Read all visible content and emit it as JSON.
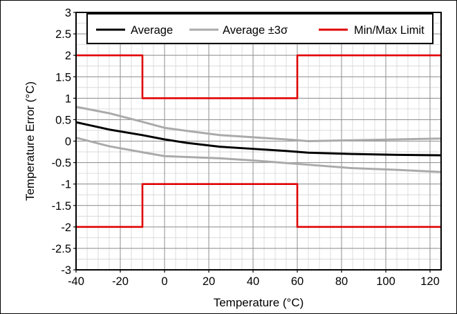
{
  "chart_data": {
    "type": "line",
    "xlabel": "Temperature (°C)",
    "ylabel": "Temperature Error (°C)",
    "xlim": [
      -40,
      125
    ],
    "ylim": [
      -3,
      3
    ],
    "x_ticks": [
      -40,
      -20,
      0,
      20,
      40,
      60,
      80,
      100,
      120
    ],
    "x_tick_labels": [
      "-40",
      "-20",
      "0",
      "20",
      "40",
      "60",
      "80",
      "100",
      "120"
    ],
    "y_ticks": [
      3,
      2.5,
      2,
      1.5,
      1,
      0.5,
      0,
      -0.5,
      -1,
      -1.5,
      -2,
      -2.5,
      -3
    ],
    "y_tick_labels": [
      "3",
      "2.5",
      "2",
      "1.5",
      "1",
      "0.5",
      "0",
      "-0.5",
      "-1",
      "-1.5",
      "-2",
      "-2.5",
      "-3"
    ],
    "x_minor_step": 5,
    "y_minor_step": 0.25,
    "grid": true,
    "legend_position": "top",
    "series": [
      {
        "name": "Average",
        "color": "#000000",
        "x": [
          -40,
          -25,
          -10,
          0,
          10,
          25,
          40,
          55,
          65,
          85,
          105,
          125
        ],
        "y": [
          0.44,
          0.27,
          0.14,
          0.04,
          -0.04,
          -0.13,
          -0.18,
          -0.23,
          -0.27,
          -0.3,
          -0.32,
          -0.33
        ]
      },
      {
        "name": "Average ±3σ",
        "color": "#aaaaaa",
        "x": [
          -40,
          -25,
          -10,
          0,
          10,
          25,
          40,
          55,
          65,
          85,
          105,
          125
        ],
        "y": [
          0.8,
          0.65,
          0.45,
          0.31,
          0.24,
          0.14,
          0.09,
          0.04,
          0.0,
          0.02,
          0.04,
          0.06
        ]
      },
      {
        "name": "",
        "color": "#aaaaaa",
        "x": [
          -40,
          -25,
          -10,
          0,
          10,
          25,
          40,
          55,
          65,
          85,
          105,
          125
        ],
        "y": [
          0.08,
          -0.12,
          -0.26,
          -0.35,
          -0.37,
          -0.4,
          -0.45,
          -0.51,
          -0.55,
          -0.63,
          -0.67,
          -0.72
        ]
      },
      {
        "name": "Min/Max Limit",
        "color": "#e00000",
        "x": [
          -40,
          -10,
          -10,
          60,
          60,
          125
        ],
        "y": [
          2,
          2,
          1,
          1,
          2,
          2
        ]
      },
      {
        "name": "",
        "color": "#e00000",
        "x": [
          -40,
          -10,
          -10,
          60,
          60,
          125
        ],
        "y": [
          -2,
          -2,
          -1,
          -1,
          -2,
          -2
        ]
      }
    ],
    "legend": [
      {
        "label": "Average",
        "color": "#000000"
      },
      {
        "label": "Average ±3σ",
        "color": "#aaaaaa"
      },
      {
        "label": "Min/Max Limit",
        "color": "#e00000"
      }
    ]
  }
}
